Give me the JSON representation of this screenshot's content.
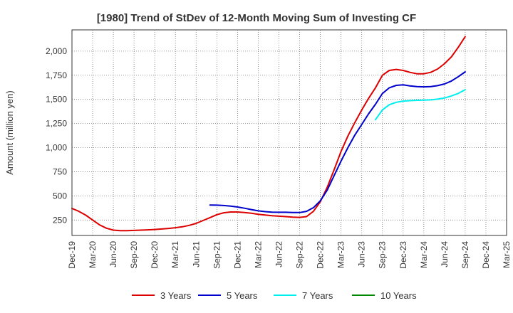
{
  "chart_data": {
    "type": "line",
    "title": "[1980]  Trend of StDev of 12-Month Moving Sum of Investing CF",
    "xlabel": "",
    "ylabel": "Amount (million yen)",
    "ylim": [
      90,
      2220
    ],
    "yticks": [
      250,
      500,
      750,
      1000,
      1250,
      1500,
      1750,
      2000
    ],
    "ytick_labels": [
      "250",
      "500",
      "750",
      "1,000",
      "1,250",
      "1,500",
      "1,750",
      "2,000"
    ],
    "x_ticks": [
      "Dec-19",
      "Mar-20",
      "Jun-20",
      "Sep-20",
      "Dec-20",
      "Mar-21",
      "Jun-21",
      "Sep-21",
      "Dec-21",
      "Mar-22",
      "Jun-22",
      "Sep-22",
      "Dec-22",
      "Mar-23",
      "Jun-23",
      "Sep-23",
      "Dec-23",
      "Mar-24",
      "Jun-24",
      "Sep-24",
      "Dec-24",
      "Mar-25"
    ],
    "grid": true,
    "legend_position": "bottom",
    "series": [
      {
        "name": "3 Years",
        "color": "#dd0000",
        "points": [
          [
            "Dec-19",
            370
          ],
          [
            "Jan-20",
            340
          ],
          [
            "Feb-20",
            300
          ],
          [
            "Mar-20",
            250
          ],
          [
            "Apr-20",
            200
          ],
          [
            "May-20",
            165
          ],
          [
            "Jun-20",
            145
          ],
          [
            "Jul-20",
            140
          ],
          [
            "Aug-20",
            140
          ],
          [
            "Sep-20",
            142
          ],
          [
            "Oct-20",
            145
          ],
          [
            "Nov-20",
            148
          ],
          [
            "Dec-20",
            152
          ],
          [
            "Jan-21",
            157
          ],
          [
            "Feb-21",
            163
          ],
          [
            "Mar-21",
            170
          ],
          [
            "Apr-21",
            180
          ],
          [
            "May-21",
            195
          ],
          [
            "Jun-21",
            215
          ],
          [
            "Jul-21",
            245
          ],
          [
            "Aug-21",
            275
          ],
          [
            "Sep-21",
            305
          ],
          [
            "Oct-21",
            325
          ],
          [
            "Nov-21",
            333
          ],
          [
            "Dec-21",
            333
          ],
          [
            "Jan-22",
            328
          ],
          [
            "Feb-22",
            320
          ],
          [
            "Mar-22",
            310
          ],
          [
            "Apr-22",
            302
          ],
          [
            "May-22",
            295
          ],
          [
            "Jun-22",
            290
          ],
          [
            "Jul-22",
            285
          ],
          [
            "Aug-22",
            280
          ],
          [
            "Sep-22",
            277
          ],
          [
            "Oct-22",
            285
          ],
          [
            "Nov-22",
            340
          ],
          [
            "Dec-22",
            440
          ],
          [
            "Jan-23",
            590
          ],
          [
            "Feb-23",
            770
          ],
          [
            "Mar-23",
            960
          ],
          [
            "Apr-23",
            1120
          ],
          [
            "May-23",
            1260
          ],
          [
            "Jun-23",
            1390
          ],
          [
            "Jul-23",
            1510
          ],
          [
            "Aug-23",
            1620
          ],
          [
            "Sep-23",
            1750
          ],
          [
            "Oct-23",
            1800
          ],
          [
            "Nov-23",
            1810
          ],
          [
            "Dec-23",
            1800
          ],
          [
            "Jan-24",
            1780
          ],
          [
            "Feb-24",
            1765
          ],
          [
            "Mar-24",
            1765
          ],
          [
            "Apr-24",
            1780
          ],
          [
            "May-24",
            1815
          ],
          [
            "Jun-24",
            1870
          ],
          [
            "Jul-24",
            1940
          ],
          [
            "Aug-24",
            2040
          ],
          [
            "Sep-24",
            2150
          ]
        ]
      },
      {
        "name": "5 Years",
        "color": "#0000cc",
        "points": [
          [
            "Aug-21",
            405
          ],
          [
            "Sep-21",
            404
          ],
          [
            "Oct-21",
            400
          ],
          [
            "Nov-21",
            394
          ],
          [
            "Dec-21",
            385
          ],
          [
            "Jan-22",
            372
          ],
          [
            "Feb-22",
            358
          ],
          [
            "Mar-22",
            345
          ],
          [
            "Apr-22",
            337
          ],
          [
            "May-22",
            332
          ],
          [
            "Jun-22",
            330
          ],
          [
            "Jul-22",
            330
          ],
          [
            "Aug-22",
            328
          ],
          [
            "Sep-22",
            327
          ],
          [
            "Oct-22",
            340
          ],
          [
            "Nov-22",
            378
          ],
          [
            "Dec-22",
            450
          ],
          [
            "Jan-23",
            560
          ],
          [
            "Feb-23",
            710
          ],
          [
            "Mar-23",
            860
          ],
          [
            "Apr-23",
            1000
          ],
          [
            "May-23",
            1130
          ],
          [
            "Jun-23",
            1240
          ],
          [
            "Jul-23",
            1350
          ],
          [
            "Aug-23",
            1450
          ],
          [
            "Sep-23",
            1560
          ],
          [
            "Oct-23",
            1620
          ],
          [
            "Nov-23",
            1645
          ],
          [
            "Dec-23",
            1650
          ],
          [
            "Jan-24",
            1640
          ],
          [
            "Feb-24",
            1632
          ],
          [
            "Mar-24",
            1630
          ],
          [
            "Apr-24",
            1632
          ],
          [
            "May-24",
            1642
          ],
          [
            "Jun-24",
            1660
          ],
          [
            "Jul-24",
            1690
          ],
          [
            "Aug-24",
            1735
          ],
          [
            "Sep-24",
            1785
          ]
        ]
      },
      {
        "name": "7 Years",
        "color": "#00eeee",
        "points": [
          [
            "Aug-23",
            1290
          ],
          [
            "Sep-23",
            1390
          ],
          [
            "Oct-23",
            1445
          ],
          [
            "Nov-23",
            1470
          ],
          [
            "Dec-23",
            1482
          ],
          [
            "Jan-24",
            1487
          ],
          [
            "Feb-24",
            1490
          ],
          [
            "Mar-24",
            1492
          ],
          [
            "Apr-24",
            1495
          ],
          [
            "May-24",
            1502
          ],
          [
            "Jun-24",
            1515
          ],
          [
            "Jul-24",
            1535
          ],
          [
            "Aug-24",
            1562
          ],
          [
            "Sep-24",
            1600
          ]
        ]
      },
      {
        "name": "10 Years",
        "color": "#008800",
        "points": []
      }
    ]
  }
}
